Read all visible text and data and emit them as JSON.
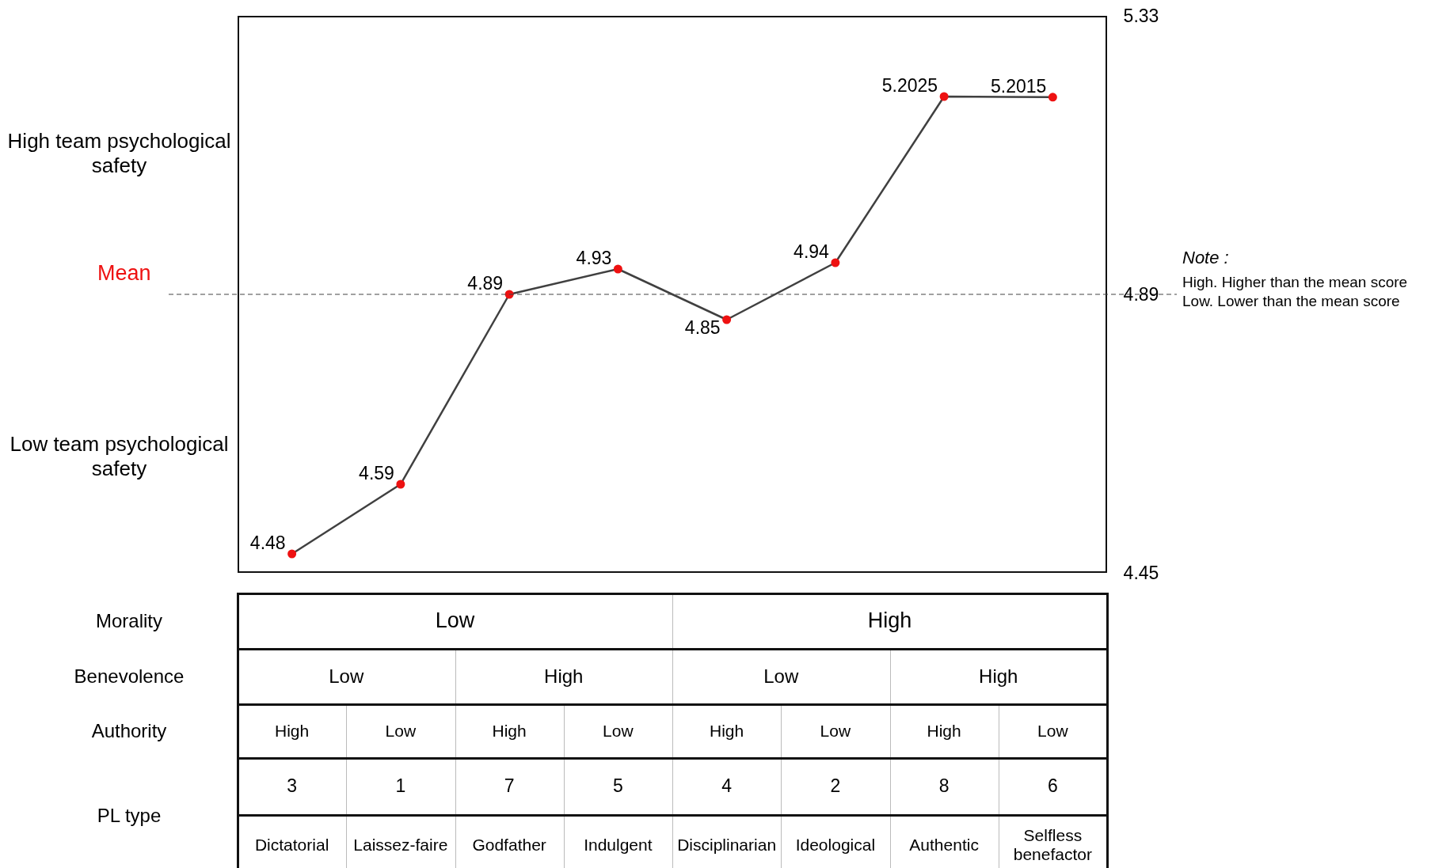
{
  "chart_data": {
    "type": "line",
    "categories": [
      "Dictatorial",
      "Laissez-faire",
      "Godfather",
      "Indulgent",
      "Disciplinarian",
      "Ideological",
      "Authentic",
      "Selfless benefactor"
    ],
    "series": [
      {
        "color": "#404040",
        "colors": [
          "#ee1111",
          "#ee1111",
          "#ee1111",
          "#ee1111",
          "#ee1111",
          "#ee1111",
          "#ee1111",
          "#ee1111"
        ],
        "axis": "y2",
        "values": [
          4.48,
          4.59,
          4.89,
          4.93,
          4.85,
          4.94,
          5.2025,
          5.2015
        ]
      }
    ],
    "y2lim": [
      4.45,
      5.33
    ],
    "y2ticks": [
      4.45,
      4.89,
      5.33
    ],
    "marker": "circle",
    "line_style": "solid",
    "data_labels": true,
    "ref_lines": [
      {
        "axis": "y2",
        "value": 4.89,
        "label": "Mean",
        "line_style": "dashed"
      }
    ],
    "annotations": [
      "High team psychological safety",
      "Low team psychological safety",
      "Note :",
      "High. Higher than the mean score",
      "Low. Lower than the mean score",
      "Morality",
      "Low",
      "High",
      "Benevolence",
      "Low",
      "High",
      "Low",
      "High",
      "Authority",
      "High",
      "Low",
      "High",
      "Low",
      "High",
      "Low",
      "High",
      "Low",
      "PL type",
      "3",
      "1",
      "7",
      "5",
      "4",
      "2",
      "8",
      "6"
    ]
  }
}
